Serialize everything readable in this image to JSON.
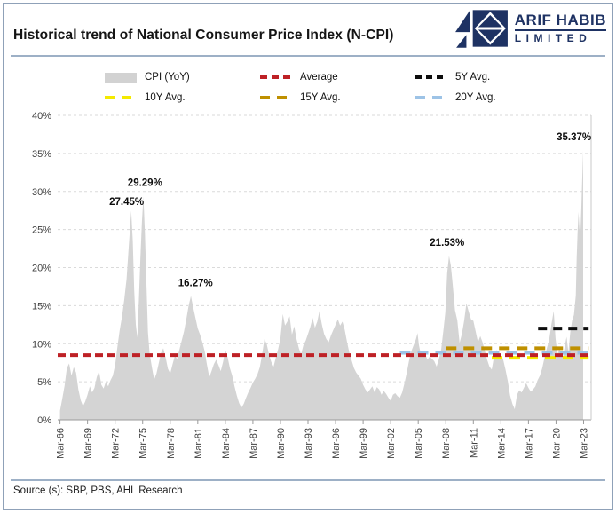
{
  "header": {
    "title": "Historical trend of National Consumer Price Index (N-CPI)",
    "logo": {
      "line1": "ARIF HABIB",
      "line2": "LIMITED",
      "color": "#1e3263"
    }
  },
  "legend": {
    "items": [
      {
        "label": "CPI (YoY)",
        "swatch": "bar",
        "color": "#d2d2d2"
      },
      {
        "label": "Average",
        "swatch": "dash",
        "color": "#be2126"
      },
      {
        "label": "5Y Avg.",
        "swatch": "dash",
        "color": "#0d0d0d"
      },
      {
        "label": "10Y Avg.",
        "swatch": "dash",
        "color": "#f4ea00"
      },
      {
        "label": "15Y Avg.",
        "swatch": "dash",
        "color": "#bf9000"
      },
      {
        "label": "20Y Avg.",
        "swatch": "dash",
        "color": "#9dc3e6"
      }
    ]
  },
  "footer": {
    "source": "Source (s): SBP, PBS, AHL Research"
  },
  "chart_data": {
    "type": "area",
    "title": "Historical trend of National Consumer Price Index (N-CPI)",
    "series_name": "CPI (YoY)",
    "area_color": "#d4d4d4",
    "grid_color": "#dadada",
    "axis_color": "#9a9a9a",
    "ylim": [
      0,
      40
    ],
    "y_ticks": [
      "0%",
      "5%",
      "10%",
      "15%",
      "20%",
      "25%",
      "30%",
      "35%",
      "40%"
    ],
    "x_tick_labels": [
      "Mar-66",
      "Mar-69",
      "Mar-72",
      "Mar-75",
      "Mar-78",
      "Mar-81",
      "Mar-84",
      "Mar-87",
      "Mar-90",
      "Mar-93",
      "Mar-96",
      "Mar-99",
      "Mar-02",
      "Mar-05",
      "Mar-08",
      "Mar-11",
      "Mar-14",
      "Mar-17",
      "Mar-20",
      "Mar-23"
    ],
    "x_tick_start_year": 1966.25,
    "x_tick_step_years": 3,
    "avg_lines": [
      {
        "name": "20Y Avg.",
        "value": 8.8,
        "from": 2003.25,
        "to": 2023.8,
        "color": "#9dc3e6",
        "width": 4,
        "dash": "12 8"
      },
      {
        "name": "10Y Avg.",
        "value": 8.15,
        "from": 2013.25,
        "to": 2023.8,
        "color": "#f4ea00",
        "width": 4,
        "dash": "12 8"
      },
      {
        "name": "Average",
        "value": 8.5,
        "from": 1966.0,
        "to": 2023.9,
        "color": "#be2126",
        "width": 4,
        "dash": "9 5"
      },
      {
        "name": "15Y Avg.",
        "value": 9.4,
        "from": 2008.25,
        "to": 2023.8,
        "color": "#bf9000",
        "width": 4,
        "dash": "12 8"
      },
      {
        "name": "5Y Avg.",
        "value": 12.0,
        "from": 2018.3,
        "to": 2023.8,
        "color": "#0d0d0d",
        "width": 4,
        "dash": "10 7"
      }
    ],
    "annotations": [
      {
        "label": "27.45%",
        "x_year": 1973.5,
        "y_value": 28.7
      },
      {
        "label": "29.29%",
        "x_year": 1975.5,
        "y_value": 31.2
      },
      {
        "label": "16.27%",
        "x_year": 1981.0,
        "y_value": 18.0
      },
      {
        "label": "21.53%",
        "x_year": 2008.4,
        "y_value": 23.3
      },
      {
        "label": "35.37%",
        "x_year": 2022.2,
        "y_value": 37.2
      }
    ],
    "points": [
      [
        1966.25,
        1.2
      ],
      [
        1966.5,
        2.8
      ],
      [
        1966.75,
        4.5
      ],
      [
        1967.0,
        6.8
      ],
      [
        1967.25,
        7.4
      ],
      [
        1967.5,
        5.8
      ],
      [
        1967.75,
        6.9
      ],
      [
        1968.0,
        6.2
      ],
      [
        1968.25,
        4.0
      ],
      [
        1968.5,
        2.6
      ],
      [
        1968.75,
        1.8
      ],
      [
        1969.0,
        2.4
      ],
      [
        1969.25,
        3.3
      ],
      [
        1969.5,
        4.4
      ],
      [
        1969.75,
        3.6
      ],
      [
        1970.0,
        4.2
      ],
      [
        1970.25,
        5.6
      ],
      [
        1970.5,
        6.4
      ],
      [
        1970.75,
        4.6
      ],
      [
        1971.0,
        4.1
      ],
      [
        1971.25,
        5.0
      ],
      [
        1971.5,
        4.4
      ],
      [
        1971.75,
        5.2
      ],
      [
        1972.0,
        5.8
      ],
      [
        1972.25,
        7.2
      ],
      [
        1972.5,
        9.6
      ],
      [
        1972.75,
        11.8
      ],
      [
        1973.0,
        13.5
      ],
      [
        1973.25,
        15.8
      ],
      [
        1973.5,
        18.5
      ],
      [
        1973.75,
        23.0
      ],
      [
        1974.0,
        27.45
      ],
      [
        1974.17,
        23.5
      ],
      [
        1974.33,
        17.0
      ],
      [
        1974.5,
        12.5
      ],
      [
        1974.67,
        10.8
      ],
      [
        1974.83,
        15.5
      ],
      [
        1975.0,
        21.0
      ],
      [
        1975.17,
        26.0
      ],
      [
        1975.33,
        29.29
      ],
      [
        1975.5,
        24.5
      ],
      [
        1975.67,
        17.5
      ],
      [
        1975.83,
        11.5
      ],
      [
        1976.0,
        8.8
      ],
      [
        1976.25,
        6.9
      ],
      [
        1976.5,
        5.3
      ],
      [
        1976.75,
        6.1
      ],
      [
        1977.0,
        7.4
      ],
      [
        1977.25,
        8.8
      ],
      [
        1977.5,
        9.4
      ],
      [
        1977.75,
        8.2
      ],
      [
        1978.0,
        6.7
      ],
      [
        1978.25,
        6.1
      ],
      [
        1978.5,
        7.3
      ],
      [
        1978.75,
        8.4
      ],
      [
        1979.0,
        8.0
      ],
      [
        1979.25,
        9.2
      ],
      [
        1979.5,
        10.4
      ],
      [
        1979.75,
        11.6
      ],
      [
        1980.0,
        13.2
      ],
      [
        1980.25,
        15.0
      ],
      [
        1980.5,
        16.27
      ],
      [
        1980.75,
        14.8
      ],
      [
        1981.0,
        13.4
      ],
      [
        1981.25,
        12.0
      ],
      [
        1981.5,
        11.2
      ],
      [
        1981.75,
        10.2
      ],
      [
        1982.0,
        9.0
      ],
      [
        1982.25,
        7.2
      ],
      [
        1982.5,
        5.6
      ],
      [
        1982.75,
        6.4
      ],
      [
        1983.0,
        7.3
      ],
      [
        1983.25,
        7.9
      ],
      [
        1983.5,
        7.2
      ],
      [
        1983.75,
        6.4
      ],
      [
        1984.0,
        7.6
      ],
      [
        1984.25,
        9.2
      ],
      [
        1984.5,
        8.2
      ],
      [
        1984.75,
        6.8
      ],
      [
        1985.0,
        5.8
      ],
      [
        1985.25,
        4.4
      ],
      [
        1985.5,
        3.2
      ],
      [
        1985.75,
        2.2
      ],
      [
        1986.0,
        1.6
      ],
      [
        1986.25,
        2.1
      ],
      [
        1986.5,
        2.9
      ],
      [
        1986.75,
        3.6
      ],
      [
        1987.0,
        4.2
      ],
      [
        1987.25,
        4.9
      ],
      [
        1987.5,
        5.4
      ],
      [
        1987.75,
        6.0
      ],
      [
        1988.0,
        6.9
      ],
      [
        1988.25,
        8.6
      ],
      [
        1988.5,
        10.6
      ],
      [
        1988.75,
        10.0
      ],
      [
        1989.0,
        8.6
      ],
      [
        1989.25,
        7.6
      ],
      [
        1989.5,
        7.0
      ],
      [
        1989.75,
        8.2
      ],
      [
        1990.0,
        9.3
      ],
      [
        1990.25,
        10.8
      ],
      [
        1990.5,
        13.9
      ],
      [
        1990.75,
        12.4
      ],
      [
        1991.0,
        12.9
      ],
      [
        1991.25,
        13.6
      ],
      [
        1991.5,
        11.2
      ],
      [
        1991.75,
        12.3
      ],
      [
        1992.0,
        10.6
      ],
      [
        1992.25,
        9.4
      ],
      [
        1992.5,
        8.6
      ],
      [
        1992.75,
        9.8
      ],
      [
        1993.0,
        10.4
      ],
      [
        1993.25,
        11.3
      ],
      [
        1993.5,
        12.2
      ],
      [
        1993.75,
        13.4
      ],
      [
        1994.0,
        12.1
      ],
      [
        1994.25,
        12.9
      ],
      [
        1994.5,
        14.3
      ],
      [
        1994.75,
        12.6
      ],
      [
        1995.0,
        11.3
      ],
      [
        1995.25,
        10.6
      ],
      [
        1995.5,
        10.2
      ],
      [
        1995.75,
        11.1
      ],
      [
        1996.0,
        11.8
      ],
      [
        1996.25,
        12.5
      ],
      [
        1996.5,
        13.2
      ],
      [
        1996.75,
        12.4
      ],
      [
        1997.0,
        12.9
      ],
      [
        1997.25,
        11.8
      ],
      [
        1997.5,
        10.2
      ],
      [
        1997.75,
        8.8
      ],
      [
        1998.0,
        7.8
      ],
      [
        1998.25,
        6.8
      ],
      [
        1998.5,
        6.2
      ],
      [
        1998.75,
        5.8
      ],
      [
        1999.0,
        5.4
      ],
      [
        1999.25,
        4.6
      ],
      [
        1999.5,
        4.0
      ],
      [
        1999.75,
        3.6
      ],
      [
        2000.0,
        4.0
      ],
      [
        2000.25,
        4.4
      ],
      [
        2000.5,
        3.6
      ],
      [
        2000.75,
        4.3
      ],
      [
        2001.0,
        4.0
      ],
      [
        2001.25,
        3.3
      ],
      [
        2001.5,
        3.8
      ],
      [
        2001.75,
        3.4
      ],
      [
        2002.0,
        2.9
      ],
      [
        2002.25,
        2.5
      ],
      [
        2002.5,
        3.3
      ],
      [
        2002.75,
        3.5
      ],
      [
        2003.0,
        3.1
      ],
      [
        2003.25,
        2.9
      ],
      [
        2003.5,
        3.6
      ],
      [
        2003.75,
        4.8
      ],
      [
        2004.0,
        6.2
      ],
      [
        2004.25,
        7.8
      ],
      [
        2004.5,
        9.0
      ],
      [
        2004.75,
        9.8
      ],
      [
        2005.0,
        10.6
      ],
      [
        2005.17,
        11.4
      ],
      [
        2005.33,
        9.8
      ],
      [
        2005.5,
        8.8
      ],
      [
        2005.75,
        8.2
      ],
      [
        2006.0,
        8.7
      ],
      [
        2006.25,
        7.9
      ],
      [
        2006.5,
        8.3
      ],
      [
        2006.75,
        8.0
      ],
      [
        2007.0,
        7.7
      ],
      [
        2007.25,
        7.0
      ],
      [
        2007.5,
        8.0
      ],
      [
        2007.75,
        9.3
      ],
      [
        2008.0,
        11.9
      ],
      [
        2008.2,
        14.1
      ],
      [
        2008.4,
        19.3
      ],
      [
        2008.6,
        21.53
      ],
      [
        2008.8,
        20.3
      ],
      [
        2009.0,
        17.8
      ],
      [
        2009.25,
        14.4
      ],
      [
        2009.5,
        13.1
      ],
      [
        2009.75,
        10.1
      ],
      [
        2010.0,
        11.3
      ],
      [
        2010.25,
        13.0
      ],
      [
        2010.5,
        15.3
      ],
      [
        2010.75,
        14.2
      ],
      [
        2011.0,
        13.2
      ],
      [
        2011.25,
        13.0
      ],
      [
        2011.5,
        11.6
      ],
      [
        2011.75,
        10.2
      ],
      [
        2012.0,
        11.0
      ],
      [
        2012.25,
        10.2
      ],
      [
        2012.5,
        9.1
      ],
      [
        2012.75,
        7.9
      ],
      [
        2013.0,
        7.0
      ],
      [
        2013.25,
        6.6
      ],
      [
        2013.5,
        8.3
      ],
      [
        2013.75,
        9.2
      ],
      [
        2014.0,
        8.2
      ],
      [
        2014.25,
        8.7
      ],
      [
        2014.5,
        7.9
      ],
      [
        2014.75,
        6.6
      ],
      [
        2015.0,
        5.1
      ],
      [
        2015.25,
        3.2
      ],
      [
        2015.5,
        2.1
      ],
      [
        2015.75,
        1.4
      ],
      [
        2016.0,
        3.3
      ],
      [
        2016.25,
        3.9
      ],
      [
        2016.5,
        3.6
      ],
      [
        2016.75,
        4.2
      ],
      [
        2017.0,
        4.8
      ],
      [
        2017.25,
        4.2
      ],
      [
        2017.5,
        3.7
      ],
      [
        2017.75,
        4.0
      ],
      [
        2018.0,
        4.4
      ],
      [
        2018.25,
        5.2
      ],
      [
        2018.5,
        5.8
      ],
      [
        2018.75,
        6.8
      ],
      [
        2019.0,
        8.2
      ],
      [
        2019.25,
        9.4
      ],
      [
        2019.5,
        10.5
      ],
      [
        2019.75,
        12.6
      ],
      [
        2020.0,
        14.3
      ],
      [
        2020.2,
        10.7
      ],
      [
        2020.4,
        8.6
      ],
      [
        2020.6,
        9.3
      ],
      [
        2020.8,
        8.8
      ],
      [
        2021.0,
        8.2
      ],
      [
        2021.2,
        9.7
      ],
      [
        2021.4,
        10.9
      ],
      [
        2021.6,
        8.9
      ],
      [
        2021.8,
        11.5
      ],
      [
        2022.0,
        13.0
      ],
      [
        2022.2,
        13.8
      ],
      [
        2022.4,
        16.3
      ],
      [
        2022.5,
        21.3
      ],
      [
        2022.6,
        24.9
      ],
      [
        2022.7,
        27.3
      ],
      [
        2022.8,
        25.1
      ],
      [
        2022.9,
        24.5
      ],
      [
        2023.0,
        27.6
      ],
      [
        2023.1,
        31.5
      ],
      [
        2023.2,
        35.37
      ]
    ]
  }
}
